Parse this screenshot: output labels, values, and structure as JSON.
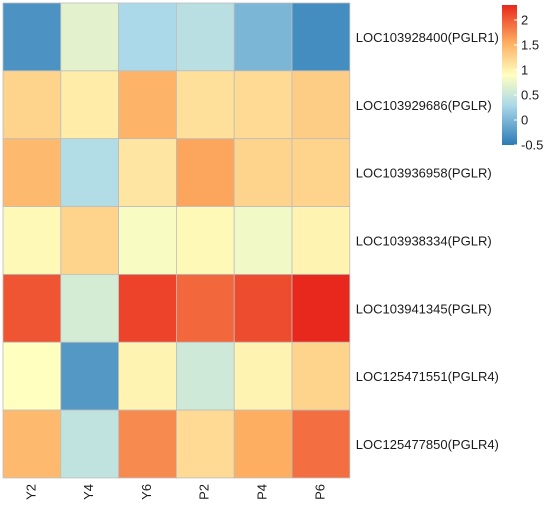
{
  "chart_data": {
    "type": "heatmap",
    "columns": [
      "Y2",
      "Y4",
      "Y6",
      "P2",
      "P4",
      "P6"
    ],
    "rows": [
      "LOC103928400(PGLR1)",
      "LOC103929686(PGLR)",
      "LOC103936958(PGLR)",
      "LOC103938334(PGLR)",
      "LOC103941345(PGLR)",
      "LOC125471551(PGLR4)",
      "LOC125477850(PGLR4)"
    ],
    "values": [
      [
        -0.3,
        0.7,
        0.3,
        0.4,
        0.0,
        -0.35
      ],
      [
        1.25,
        1.05,
        1.5,
        1.15,
        1.2,
        1.3
      ],
      [
        1.45,
        0.35,
        1.1,
        1.6,
        1.25,
        1.25
      ],
      [
        0.95,
        1.25,
        0.85,
        0.95,
        0.8,
        1.0
      ],
      [
        2.05,
        0.6,
        2.15,
        1.95,
        2.1,
        2.3
      ],
      [
        0.9,
        -0.25,
        1.0,
        0.55,
        1.0,
        1.25
      ],
      [
        1.45,
        0.45,
        1.75,
        1.2,
        1.55,
        1.9
      ]
    ],
    "legend": {
      "ticks": [
        2,
        1.5,
        1,
        0.5,
        0,
        -0.5
      ],
      "tick_labels": [
        "2",
        "1.5",
        "1",
        "0.5",
        "0",
        "-0.5"
      ],
      "range": [
        -0.5,
        2.3
      ],
      "placement": "top-right"
    },
    "color_scale": {
      "low": "#2c7bb6",
      "mid_low": "#abd9e9",
      "mid": "#ffffbf",
      "mid_high": "#fdae61",
      "high": "#e8281c"
    },
    "grid": true
  }
}
